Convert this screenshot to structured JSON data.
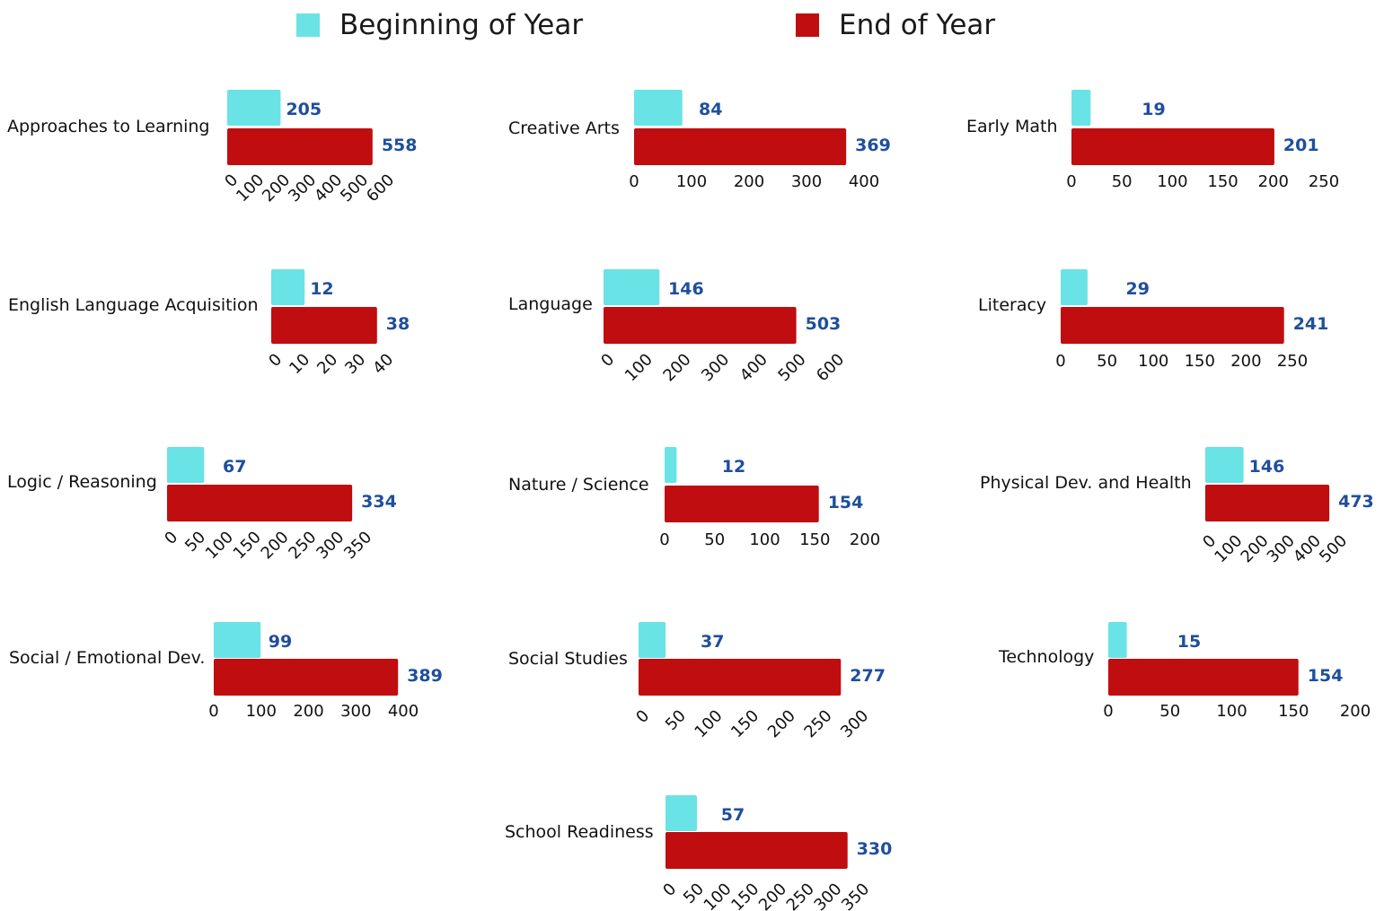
{
  "legend": {
    "beginning_label": "Beginning of Year",
    "end_label": "End of Year"
  },
  "colors": {
    "beginning": "#6ae3e6",
    "end": "#c00d0f",
    "value_label": "#1f4e9c"
  },
  "chart_data": [
    {
      "type": "bar",
      "orientation": "horizontal",
      "category": "Approaches to Learning",
      "series": [
        {
          "name": "Beginning of Year",
          "values": [
            205
          ]
        },
        {
          "name": "End of Year",
          "values": [
            558
          ]
        }
      ],
      "ticks": [
        0,
        100,
        200,
        300,
        400,
        500,
        600
      ],
      "xlim": [
        0,
        600
      ],
      "tick_rotation": "diagonal"
    },
    {
      "type": "bar",
      "orientation": "horizontal",
      "category": "Creative Arts",
      "series": [
        {
          "name": "Beginning of Year",
          "values": [
            84
          ]
        },
        {
          "name": "End of Year",
          "values": [
            369
          ]
        }
      ],
      "ticks": [
        0,
        100,
        200,
        300,
        400
      ],
      "xlim": [
        0,
        400
      ],
      "tick_rotation": "none"
    },
    {
      "type": "bar",
      "orientation": "horizontal",
      "category": "Early Math",
      "series": [
        {
          "name": "Beginning of Year",
          "values": [
            19
          ]
        },
        {
          "name": "End of Year",
          "values": [
            201
          ]
        }
      ],
      "ticks": [
        0,
        50,
        100,
        150,
        200,
        250
      ],
      "xlim": [
        0,
        250
      ],
      "tick_rotation": "none"
    },
    {
      "type": "bar",
      "orientation": "horizontal",
      "category": "English Language Acquisition",
      "series": [
        {
          "name": "Beginning of Year",
          "values": [
            12
          ]
        },
        {
          "name": "End of Year",
          "values": [
            38
          ]
        }
      ],
      "ticks": [
        0,
        10,
        20,
        30,
        40
      ],
      "xlim": [
        0,
        40
      ],
      "tick_rotation": "diagonal"
    },
    {
      "type": "bar",
      "orientation": "horizontal",
      "category": "Language",
      "series": [
        {
          "name": "Beginning of Year",
          "values": [
            146
          ]
        },
        {
          "name": "End of Year",
          "values": [
            503
          ]
        }
      ],
      "ticks": [
        0,
        100,
        200,
        300,
        400,
        500,
        600
      ],
      "xlim": [
        0,
        600
      ],
      "tick_rotation": "diagonal"
    },
    {
      "type": "bar",
      "orientation": "horizontal",
      "category": "Literacy",
      "series": [
        {
          "name": "Beginning of Year",
          "values": [
            29
          ]
        },
        {
          "name": "End of Year",
          "values": [
            241
          ]
        }
      ],
      "ticks": [
        0,
        50,
        100,
        150,
        200,
        250
      ],
      "xlim": [
        0,
        250
      ],
      "tick_rotation": "none"
    },
    {
      "type": "bar",
      "orientation": "horizontal",
      "category": "Logic / Reasoning",
      "series": [
        {
          "name": "Beginning of Year",
          "values": [
            67
          ]
        },
        {
          "name": "End of Year",
          "values": [
            334
          ]
        }
      ],
      "ticks": [
        0,
        50,
        100,
        150,
        200,
        250,
        300,
        350
      ],
      "xlim": [
        0,
        350
      ],
      "tick_rotation": "diagonal"
    },
    {
      "type": "bar",
      "orientation": "horizontal",
      "category": "Nature / Science",
      "series": [
        {
          "name": "Beginning of Year",
          "values": [
            12
          ]
        },
        {
          "name": "End of Year",
          "values": [
            154
          ]
        }
      ],
      "ticks": [
        0,
        50,
        100,
        150,
        200
      ],
      "xlim": [
        0,
        200
      ],
      "tick_rotation": "none"
    },
    {
      "type": "bar",
      "orientation": "horizontal",
      "category": "Physical Dev. and Health",
      "series": [
        {
          "name": "Beginning of Year",
          "values": [
            146
          ]
        },
        {
          "name": "End of Year",
          "values": [
            473
          ]
        }
      ],
      "ticks": [
        0,
        100,
        200,
        300,
        400,
        500
      ],
      "xlim": [
        0,
        500
      ],
      "tick_rotation": "diagonal"
    },
    {
      "type": "bar",
      "orientation": "horizontal",
      "category": "Social / Emotional Dev.",
      "series": [
        {
          "name": "Beginning of Year",
          "values": [
            99
          ]
        },
        {
          "name": "End of Year",
          "values": [
            389
          ]
        }
      ],
      "ticks": [
        0,
        100,
        200,
        300,
        400
      ],
      "xlim": [
        0,
        400
      ],
      "tick_rotation": "none"
    },
    {
      "type": "bar",
      "orientation": "horizontal",
      "category": "Social Studies",
      "series": [
        {
          "name": "Beginning of Year",
          "values": [
            37
          ]
        },
        {
          "name": "End of Year",
          "values": [
            277
          ]
        }
      ],
      "ticks": [
        0,
        50,
        100,
        150,
        200,
        250,
        300
      ],
      "xlim": [
        0,
        300
      ],
      "tick_rotation": "diagonal"
    },
    {
      "type": "bar",
      "orientation": "horizontal",
      "category": "Technology",
      "series": [
        {
          "name": "Beginning of Year",
          "values": [
            15
          ]
        },
        {
          "name": "End of Year",
          "values": [
            154
          ]
        }
      ],
      "ticks": [
        0,
        50,
        100,
        150,
        200
      ],
      "xlim": [
        0,
        200
      ],
      "tick_rotation": "none"
    },
    {
      "type": "bar",
      "orientation": "horizontal",
      "category": "School Readiness",
      "series": [
        {
          "name": "Beginning of Year",
          "values": [
            57
          ]
        },
        {
          "name": "End of Year",
          "values": [
            330
          ]
        }
      ],
      "ticks": [
        0,
        50,
        100,
        150,
        200,
        250,
        300,
        350
      ],
      "xlim": [
        0,
        350
      ],
      "tick_rotation": "diagonal"
    }
  ]
}
